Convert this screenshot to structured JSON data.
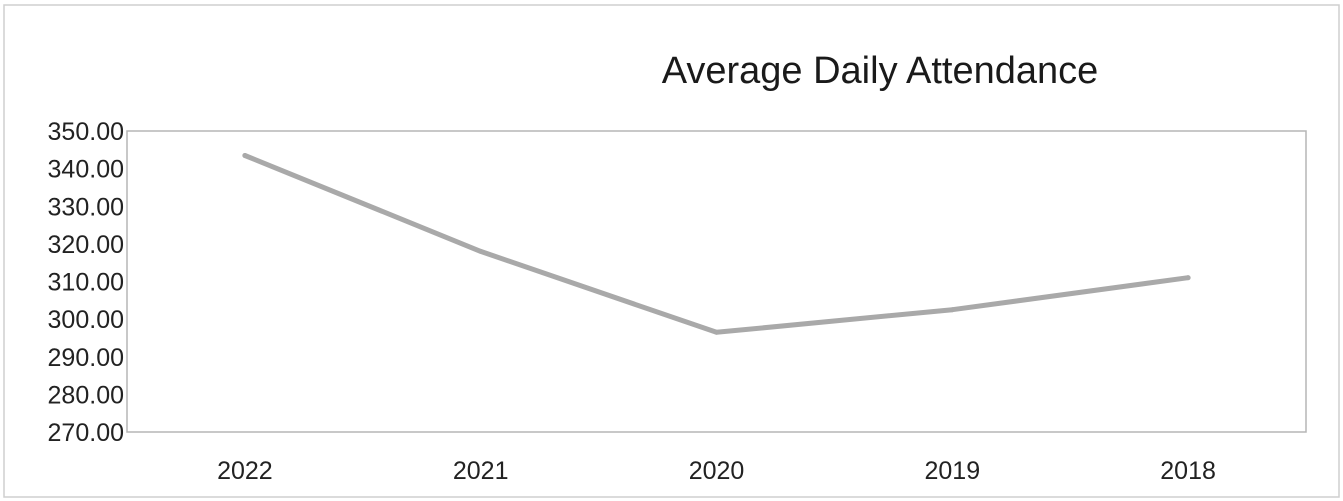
{
  "chart_data": {
    "type": "line",
    "title": "Average Daily Attendance",
    "xlabel": "",
    "ylabel": "",
    "categories": [
      "2022",
      "2021",
      "2020",
      "2019",
      "2018"
    ],
    "series": [
      {
        "values": [
          343.5,
          318.0,
          296.5,
          302.5,
          311.0
        ]
      }
    ],
    "ylim": [
      270,
      350
    ],
    "y_ticks": [
      "270.00",
      "280.00",
      "290.00",
      "300.00",
      "310.00",
      "320.00",
      "330.00",
      "340.00",
      "350.00"
    ],
    "grid": false,
    "legend": "none",
    "colors": {
      "line": "#a9a9a9",
      "frame": "#b5b5b5",
      "outer_border": "#cfcfcf",
      "text": "#222222"
    }
  }
}
